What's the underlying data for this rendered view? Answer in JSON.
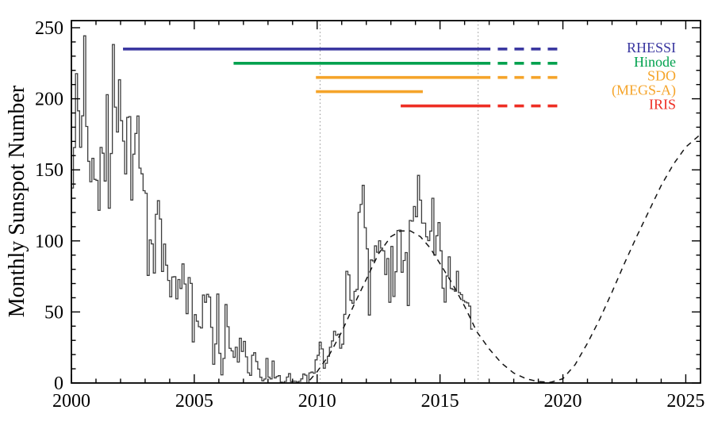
{
  "chart_data": {
    "type": "line",
    "title": "",
    "xlabel": "",
    "ylabel": "Monthly Sunspot Number",
    "xlim": [
      2000,
      2025.6
    ],
    "ylim": [
      0,
      255
    ],
    "xticks": [
      2000,
      2005,
      2010,
      2015,
      2020,
      2025
    ],
    "x_minor_step": 1,
    "yticks": [
      0,
      50,
      100,
      150,
      200,
      250
    ],
    "y_minor_step": 10,
    "grid": false,
    "legend_position": "upper right",
    "series": [
      {
        "name": "monthly-sunspot-number",
        "style": "step-histogram",
        "color": "#3d3d3d",
        "x_start": 2000.0,
        "x_step_years": 0.0833333,
        "values": [
          137.2,
          165.7,
          217.7,
          191.5,
          165.9,
          188.0,
          244.3,
          180.5,
          156.0,
          141.6,
          158.1,
          143.3,
          142.6,
          121.5,
          165.8,
          161.7,
          142.1,
          202.9,
          123.0,
          161.5,
          238.2,
          194.1,
          176.6,
          213.4,
          184.6,
          170.2,
          147.1,
          186.9,
          187.5,
          128.8,
          161.0,
          175.6,
          187.9,
          151.2,
          147.2,
          135.3,
          133.5,
          75.7,
          100.7,
          97.9,
          77.4,
          118.7,
          128.3,
          115.4,
          78.5,
          97.8,
          82.9,
          72.2,
          60.6,
          74.6,
          74.8,
          59.2,
          72.8,
          66.5,
          83.8,
          69.7,
          48.8,
          74.2,
          70.1,
          28.9,
          48.1,
          43.5,
          39.6,
          38.7,
          61.9,
          56.8,
          62.4,
          60.5,
          39.2,
          13.2,
          27.5,
          62.6,
          20.9,
          5.7,
          17.3,
          55.2,
          39.6,
          24.4,
          22.6,
          18.1,
          25.2,
          14.7,
          31.5,
          22.2,
          29.3,
          18.4,
          7.2,
          5.4,
          19.5,
          21.3,
          15.1,
          9.8,
          4.0,
          1.5,
          2.8,
          17.3,
          4.1,
          2.9,
          15.5,
          3.6,
          4.6,
          5.2,
          0.6,
          0.3,
          1.1,
          4.2,
          6.6,
          1.0,
          1.3,
          1.2,
          0.6,
          1.2,
          2.9,
          6.3,
          5.5,
          0.0,
          7.1,
          7.7,
          6.9,
          16.3,
          19.5,
          28.7,
          24.0,
          10.4,
          13.9,
          18.8,
          25.2,
          29.6,
          36.4,
          33.6,
          34.4,
          24.5,
          27.3,
          48.3,
          78.6,
          76.1,
          58.2,
          56.1,
          64.5,
          65.8,
          120.1,
          125.7,
          139.1,
          109.3,
          94.4,
          47.8,
          86.6,
          85.9,
          96.5,
          92.0,
          100.1,
          94.9,
          93.0,
          76.3,
          87.6,
          56.8,
          96.1,
          60.9,
          78.3,
          107.3,
          107.6,
          77.9,
          86.2,
          91.8,
          54.5,
          114.4,
          113.9,
          124.2,
          117.0,
          146.1,
          128.7,
          112.5,
          112.5,
          102.9,
          100.2,
          106.9,
          130.0,
          90.0,
          103.6,
          112.9,
          93.0,
          66.7,
          56.9,
          75.3,
          88.8,
          66.5,
          65.8,
          64.6,
          78.6,
          63.6,
          62.2,
          58.0,
          57.0,
          56.4,
          54.1,
          37.9
        ]
      },
      {
        "name": "smoothed-cycle-prediction",
        "style": "dashed-curve",
        "color": "#151515",
        "x": [
          2009.7,
          2010.0,
          2010.5,
          2011.0,
          2011.5,
          2012.0,
          2012.5,
          2013.0,
          2013.4,
          2013.8,
          2014.2,
          2014.6,
          2015.0,
          2015.5,
          2016.0,
          2016.5,
          2017.0,
          2017.5,
          2018.0,
          2018.5,
          2019.0,
          2019.5,
          2020.0,
          2020.5,
          2021.0,
          2021.5,
          2022.0,
          2022.5,
          2023.0,
          2023.5,
          2024.0,
          2024.5,
          2025.0,
          2025.6
        ],
        "y": [
          2,
          8,
          20,
          36,
          55,
          73,
          91,
          103,
          107,
          107,
          103,
          95,
          84,
          70,
          54,
          36,
          24,
          14,
          7,
          3,
          1,
          0.5,
          3,
          13,
          28,
          45,
          64,
          84,
          103,
          121,
          139,
          154,
          166,
          175
        ]
      }
    ],
    "reference_lines": [
      {
        "name": "dotted-line-2010",
        "x": 2010.12,
        "style": "dotted",
        "color": "#9a9a9a"
      },
      {
        "name": "dotted-line-2016",
        "x": 2016.55,
        "style": "dotted",
        "color": "#9a9a9a"
      }
    ],
    "missions": [
      {
        "label": "RHESSI",
        "color": "#3b38a1",
        "row_value": 235,
        "solid": [
          2002.1,
          2017.05
        ],
        "dashed": [
          2017.35,
          2019.8
        ]
      },
      {
        "label": "Hinode",
        "color": "#00a14e",
        "row_value": 225,
        "solid": [
          2006.6,
          2017.05
        ],
        "dashed": [
          2017.35,
          2019.8
        ]
      },
      {
        "label": "SDO",
        "color": "#f5a42a",
        "row_value": 215,
        "solid": [
          2009.95,
          2017.05
        ],
        "dashed": [
          2017.35,
          2019.8
        ]
      },
      {
        "label": "(MEGS-A)",
        "color": "#f5a42a",
        "row_value": 205,
        "solid": [
          2009.95,
          2014.3
        ],
        "dashed": null
      },
      {
        "label": "IRIS",
        "color": "#ee2e24",
        "row_value": 195,
        "solid": [
          2013.4,
          2017.05
        ],
        "dashed": [
          2017.35,
          2019.8
        ]
      }
    ]
  }
}
